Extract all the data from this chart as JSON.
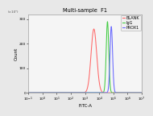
{
  "title": "Multi-sample  F1",
  "xlabel": "FITC-A",
  "ylabel": "Count",
  "background_color": "#e8e8e8",
  "plot_bg_color": "#f5f5f5",
  "series": [
    {
      "label": "BLANK",
      "color": "#ff6666",
      "mu_log10": 3.62,
      "sigma_log10": 0.2,
      "peak": 260
    },
    {
      "label": "IgG",
      "color": "#44cc44",
      "mu_log10": 4.58,
      "sigma_log10": 0.09,
      "peak": 290
    },
    {
      "label": "PROX1",
      "color": "#6666ff",
      "mu_log10": 4.85,
      "sigma_log10": 0.09,
      "peak": 270
    }
  ],
  "xlim_log10": [
    -1,
    7
  ],
  "ylim": [
    0,
    320
  ],
  "ytick_values": [
    0,
    100,
    200,
    300
  ],
  "ytick_labels": [
    "0",
    "100",
    "200",
    "300"
  ],
  "ylabel_note": "(x10²)",
  "title_fontsize": 4.8,
  "axis_fontsize": 4.0,
  "tick_fontsize": 3.2,
  "legend_fontsize": 3.5,
  "linewidth": 0.75
}
